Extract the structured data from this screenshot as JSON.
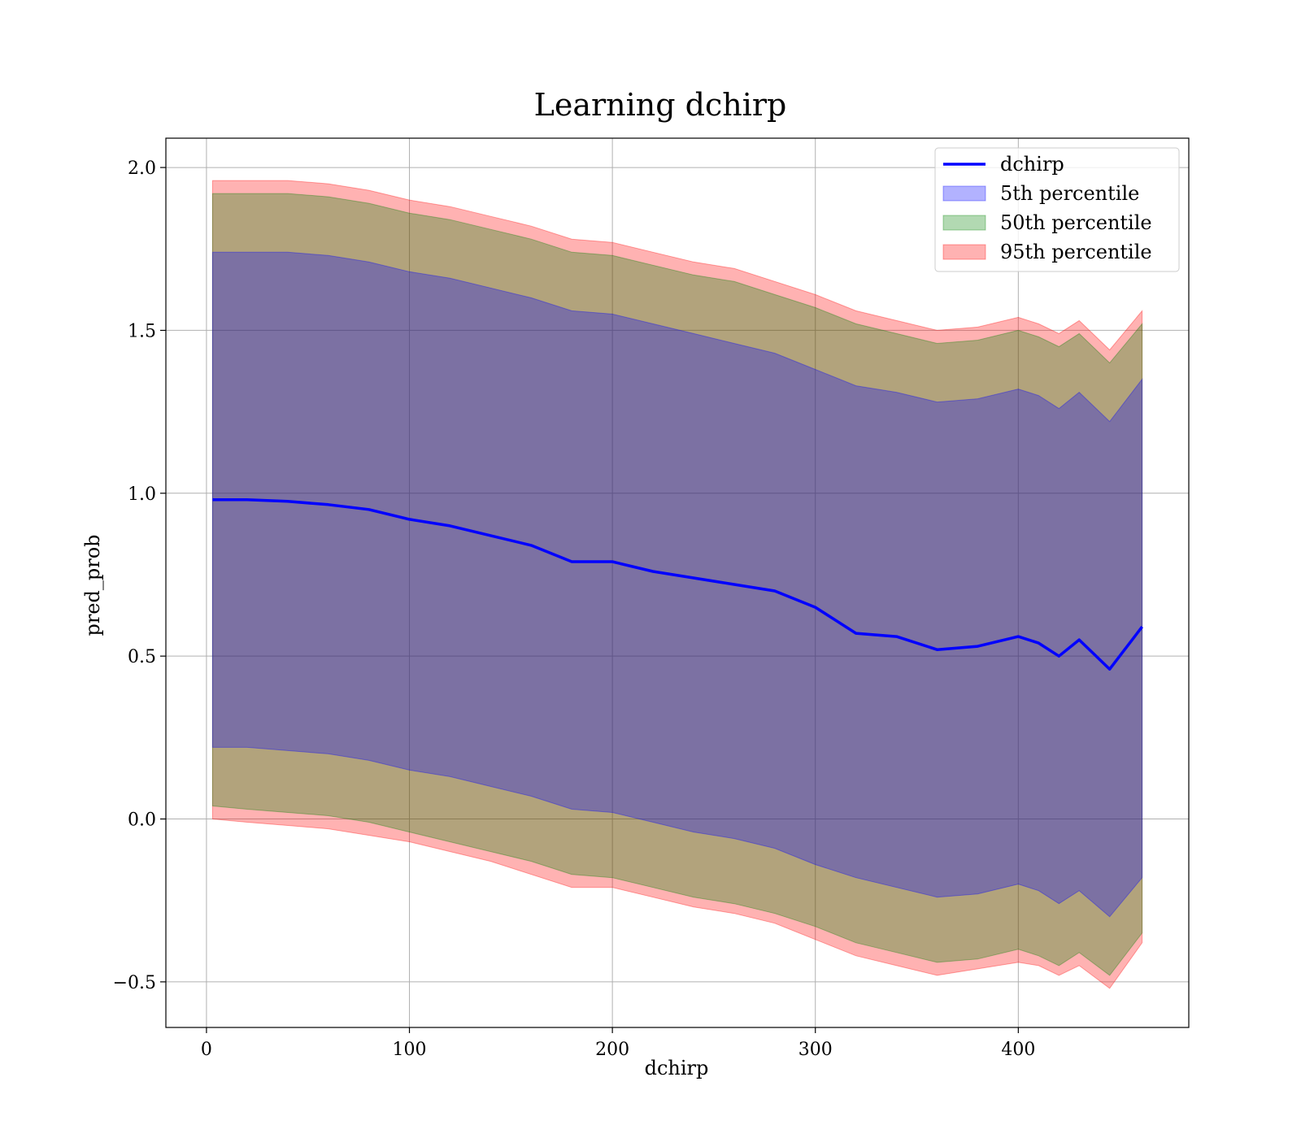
{
  "chart_data": {
    "type": "line",
    "title": "Learning dchirp",
    "xlabel": "dchirp",
    "ylabel": "pred_prob",
    "xlim": [
      -20,
      484
    ],
    "ylim": [
      -0.64,
      2.09
    ],
    "xticks": [
      0,
      100,
      200,
      300,
      400
    ],
    "xtick_labels": [
      "0",
      "100",
      "200",
      "300",
      "400"
    ],
    "yticks": [
      -0.5,
      0.0,
      0.5,
      1.0,
      1.5,
      2.0
    ],
    "ytick_labels": [
      "−0.5",
      "0.0",
      "0.5",
      "1.0",
      "1.5",
      "2.0"
    ],
    "grid": true,
    "legend_position": "top-right",
    "legend": [
      "dchirp",
      "5th percentile",
      "50th percentile",
      "95th percentile"
    ],
    "colors": {
      "line": "#0000ff",
      "band_5": "#0000ff",
      "band_50": "#008000",
      "band_95": "#ff0000",
      "grid": "#b0b0b0"
    },
    "x": [
      3,
      20,
      40,
      60,
      80,
      100,
      120,
      140,
      160,
      180,
      200,
      220,
      240,
      260,
      280,
      300,
      320,
      340,
      360,
      380,
      400,
      410,
      420,
      430,
      445,
      461
    ],
    "series": [
      {
        "name": "dchirp",
        "kind": "line",
        "values": [
          0.98,
          0.98,
          0.975,
          0.965,
          0.95,
          0.92,
          0.9,
          0.87,
          0.84,
          0.79,
          0.79,
          0.76,
          0.74,
          0.72,
          0.7,
          0.65,
          0.57,
          0.56,
          0.52,
          0.53,
          0.56,
          0.54,
          0.5,
          0.55,
          0.46,
          0.59
        ]
      },
      {
        "name": "5th percentile",
        "kind": "band",
        "lower": [
          0.22,
          0.22,
          0.21,
          0.2,
          0.18,
          0.15,
          0.13,
          0.1,
          0.07,
          0.03,
          0.02,
          -0.01,
          -0.04,
          -0.06,
          -0.09,
          -0.14,
          -0.18,
          -0.21,
          -0.24,
          -0.23,
          -0.2,
          -0.22,
          -0.26,
          -0.22,
          -0.3,
          -0.18
        ],
        "upper": [
          1.74,
          1.74,
          1.74,
          1.73,
          1.71,
          1.68,
          1.66,
          1.63,
          1.6,
          1.56,
          1.55,
          1.52,
          1.49,
          1.46,
          1.43,
          1.38,
          1.33,
          1.31,
          1.28,
          1.29,
          1.32,
          1.3,
          1.26,
          1.31,
          1.22,
          1.35
        ]
      },
      {
        "name": "50th percentile",
        "kind": "band",
        "lower": [
          0.04,
          0.03,
          0.02,
          0.01,
          -0.01,
          -0.04,
          -0.07,
          -0.1,
          -0.13,
          -0.17,
          -0.18,
          -0.21,
          -0.24,
          -0.26,
          -0.29,
          -0.33,
          -0.38,
          -0.41,
          -0.44,
          -0.43,
          -0.4,
          -0.42,
          -0.45,
          -0.41,
          -0.48,
          -0.35
        ],
        "upper": [
          1.92,
          1.92,
          1.92,
          1.91,
          1.89,
          1.86,
          1.84,
          1.81,
          1.78,
          1.74,
          1.73,
          1.7,
          1.67,
          1.65,
          1.61,
          1.57,
          1.52,
          1.49,
          1.46,
          1.47,
          1.5,
          1.48,
          1.45,
          1.49,
          1.4,
          1.52
        ]
      },
      {
        "name": "95th percentile",
        "kind": "band",
        "lower": [
          0.0,
          -0.01,
          -0.02,
          -0.03,
          -0.05,
          -0.07,
          -0.1,
          -0.13,
          -0.17,
          -0.21,
          -0.21,
          -0.24,
          -0.27,
          -0.29,
          -0.32,
          -0.37,
          -0.42,
          -0.45,
          -0.48,
          -0.46,
          -0.44,
          -0.45,
          -0.48,
          -0.45,
          -0.52,
          -0.38
        ],
        "upper": [
          1.96,
          1.96,
          1.96,
          1.95,
          1.93,
          1.9,
          1.88,
          1.85,
          1.82,
          1.78,
          1.77,
          1.74,
          1.71,
          1.69,
          1.65,
          1.61,
          1.56,
          1.53,
          1.5,
          1.51,
          1.54,
          1.52,
          1.49,
          1.53,
          1.44,
          1.56
        ]
      }
    ]
  }
}
